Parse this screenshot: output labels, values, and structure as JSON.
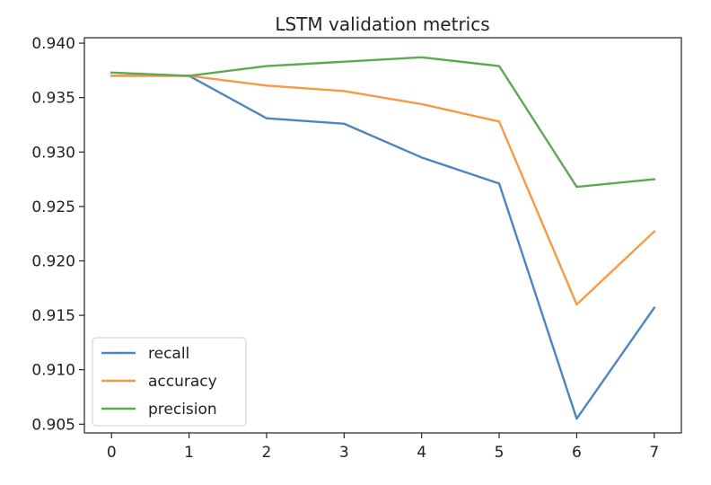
{
  "chart_data": {
    "type": "line",
    "title": "LSTM validation metrics",
    "xlabel": "",
    "ylabel": "",
    "x": [
      0,
      1,
      2,
      3,
      4,
      5,
      6,
      7
    ],
    "xlim": [
      -0.35,
      7.35
    ],
    "ylim": [
      0.9042,
      0.9405
    ],
    "xticks": [
      0,
      1,
      2,
      3,
      4,
      5,
      6,
      7
    ],
    "yticks": [
      0.905,
      0.91,
      0.915,
      0.92,
      0.925,
      0.93,
      0.935,
      0.94
    ],
    "ytick_labels": [
      "0.905",
      "0.910",
      "0.915",
      "0.920",
      "0.925",
      "0.930",
      "0.935",
      "0.940"
    ],
    "grid": false,
    "legend_position": "lower-left",
    "series": [
      {
        "name": "recall",
        "color": "#4d85bd",
        "values": [
          0.937,
          0.937,
          0.9331,
          0.9326,
          0.9295,
          0.9271,
          0.9055,
          0.9157
        ]
      },
      {
        "name": "accuracy",
        "color": "#f59a44",
        "values": [
          0.937,
          0.937,
          0.9361,
          0.9356,
          0.9344,
          0.9328,
          0.916,
          0.9227
        ]
      },
      {
        "name": "precision",
        "color": "#5ea853",
        "values": [
          0.9373,
          0.937,
          0.9379,
          0.9383,
          0.9387,
          0.9379,
          0.9268,
          0.9275
        ]
      }
    ]
  }
}
